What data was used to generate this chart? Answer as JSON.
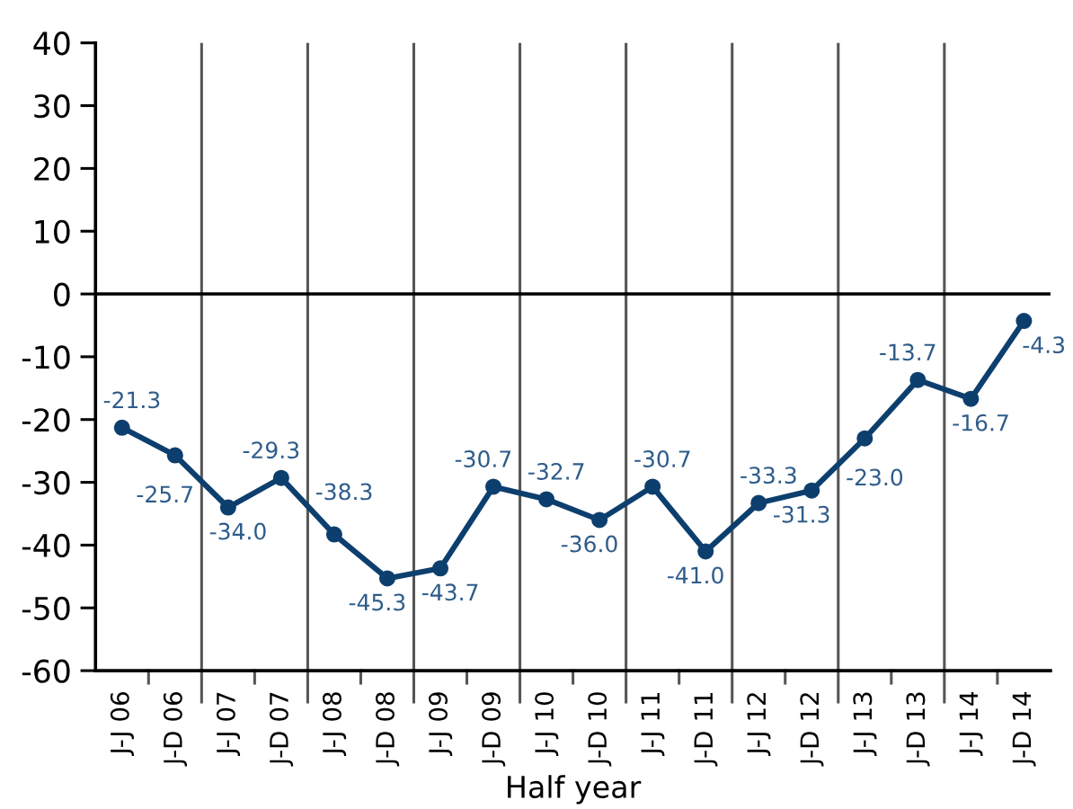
{
  "chart_data": {
    "type": "line",
    "xlabel": "Half year",
    "categories": [
      "J-J 06",
      "J-D 06",
      "J-J 07",
      "J-D 07",
      "J-J 08",
      "J-D 08",
      "J-J 09",
      "J-D 09",
      "J-J 10",
      "J-D 10",
      "J-J 11",
      "J-D 11",
      "J-J 12",
      "J-D 12",
      "J-J 13",
      "J-D 13",
      "J-J 14",
      "J-D 14"
    ],
    "series": [
      {
        "color": "#0d3f6e",
        "values": [
          -21.3,
          -25.7,
          -34.0,
          -29.3,
          -38.3,
          -45.3,
          -43.7,
          -30.7,
          -32.7,
          -36.0,
          -30.7,
          -41.0,
          -33.3,
          -31.3,
          -23.0,
          -13.7,
          -16.7,
          -4.3
        ],
        "value_labels": [
          "-21.3",
          "-25.7",
          "-34.0",
          "-29.3",
          "-38.3",
          "-45.3",
          "-43.7",
          "-30.7",
          "-32.7",
          "-36.0",
          "-30.7",
          "-41.0",
          "-33.3",
          "-31.3",
          "-23.0",
          "-13.7",
          "-16.7",
          "-4.3"
        ]
      }
    ],
    "ylim": [
      -60,
      40
    ],
    "yticks": [
      -60,
      -50,
      -40,
      -30,
      -20,
      -10,
      0,
      10,
      20,
      30,
      40
    ],
    "ref_lines": [
      {
        "axis": "y",
        "value": 0,
        "color": "#000000"
      }
    ],
    "grid": "x",
    "marker": "circle",
    "line_style": "solid",
    "legend": false
  }
}
